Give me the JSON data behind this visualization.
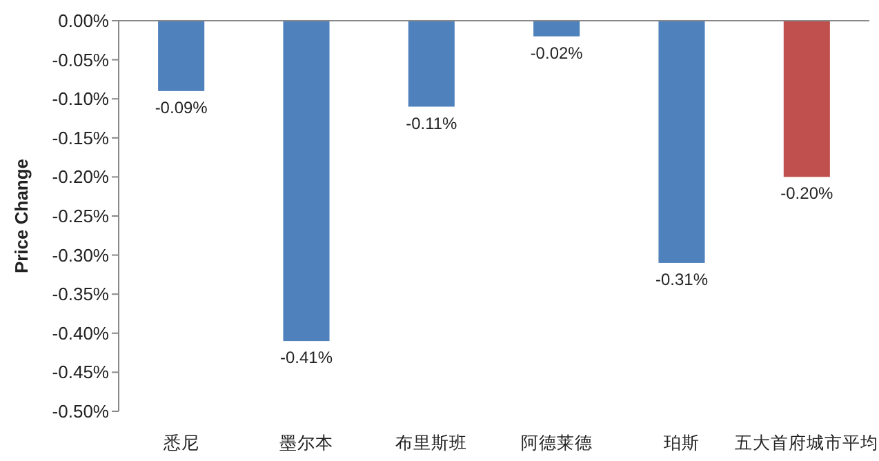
{
  "chart_data": {
    "type": "bar",
    "ylabel": "Price Change",
    "categories": [
      "悉尼",
      "墨尔本",
      "布里斯班",
      "阿德莱德",
      "珀斯",
      "五大首府城市平均"
    ],
    "values": [
      -0.09,
      -0.41,
      -0.11,
      -0.02,
      -0.31,
      -0.2
    ],
    "colors": [
      "#4f81bd",
      "#4f81bd",
      "#4f81bd",
      "#4f81bd",
      "#4f81bd",
      "#c0504d"
    ],
    "value_labels": [
      "-0.09%",
      "-0.41%",
      "-0.11%",
      "-0.02%",
      "-0.31%",
      "-0.20%"
    ],
    "ylim": [
      -0.5,
      0
    ],
    "yticks": [
      {
        "value": 0,
        "label": "0.00%"
      },
      {
        "value": -0.05,
        "label": "-0.05%"
      },
      {
        "value": -0.1,
        "label": "-0.10%"
      },
      {
        "value": -0.15,
        "label": "-0.15%"
      },
      {
        "value": -0.2,
        "label": "-0.20%"
      },
      {
        "value": -0.25,
        "label": "-0.25%"
      },
      {
        "value": -0.3,
        "label": "-0.30%"
      },
      {
        "value": -0.35,
        "label": "-0.35%"
      },
      {
        "value": -0.4,
        "label": "-0.40%"
      },
      {
        "value": -0.45,
        "label": "-0.45%"
      },
      {
        "value": -0.5,
        "label": "-0.50%"
      }
    ],
    "grid": false
  }
}
